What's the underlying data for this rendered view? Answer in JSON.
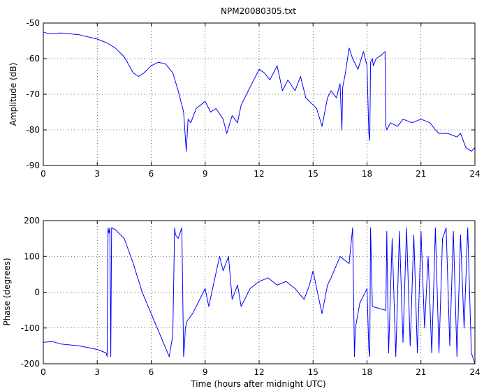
{
  "chart_data": [
    {
      "type": "line",
      "title": "NPM20080305.txt",
      "xlabel": "",
      "ylabel": "Amplitude (dB)",
      "xlim": [
        0,
        24
      ],
      "ylim": [
        -90,
        -50
      ],
      "xticks": [
        0,
        3,
        6,
        9,
        12,
        15,
        18,
        21,
        24
      ],
      "yticks": [
        -90,
        -80,
        -70,
        -60,
        -50
      ],
      "grid": true,
      "series": [
        {
          "color": "#0000ff",
          "x": [
            0,
            0.3,
            1,
            2,
            3,
            3.5,
            4,
            4.5,
            5,
            5.3,
            5.6,
            6,
            6.4,
            6.8,
            7.2,
            7.5,
            7.8,
            7.95,
            8.05,
            8.2,
            8.5,
            9,
            9.3,
            9.6,
            10,
            10.2,
            10.5,
            10.8,
            11,
            11.5,
            12,
            12.3,
            12.6,
            13,
            13.3,
            13.6,
            14,
            14.3,
            14.6,
            15,
            15.2,
            15.5,
            15.8,
            16,
            16.3,
            16.5,
            16.6,
            16.65,
            16.8,
            17,
            17.2,
            17.5,
            17.8,
            18,
            18.1,
            18.15,
            18.2,
            18.3,
            18.35,
            18.5,
            18.8,
            19,
            19.05,
            19.1,
            19.3,
            19.7,
            20,
            20.5,
            21,
            21.5,
            21.8,
            22,
            22.5,
            23,
            23.2,
            23.5,
            23.8,
            24
          ],
          "y": [
            -52.5,
            -53,
            -52.8,
            -53.3,
            -54.5,
            -55.5,
            -57,
            -59.5,
            -64,
            -65,
            -64,
            -62,
            -61,
            -61.5,
            -64,
            -69,
            -75,
            -86,
            -77,
            -78,
            -74,
            -72,
            -75,
            -74,
            -77,
            -81,
            -76,
            -78,
            -73,
            -68,
            -63,
            -64,
            -66,
            -62,
            -69,
            -66,
            -69,
            -65,
            -71,
            -73,
            -74,
            -79,
            -71,
            -69,
            -71,
            -67,
            -80,
            -68,
            -64,
            -57,
            -60,
            -63,
            -58,
            -62,
            -81,
            -83,
            -61,
            -60,
            -62,
            -60,
            -59,
            -58,
            -79,
            -80,
            -78,
            -79,
            -77,
            -78,
            -77,
            -78,
            -80,
            -81,
            -81,
            -82,
            -81,
            -85,
            -86,
            -85
          ]
        }
      ]
    },
    {
      "type": "line",
      "title": "",
      "xlabel": "Time (hours after midnight UTC)",
      "ylabel": "Phase (degrees)",
      "xlim": [
        0,
        24
      ],
      "ylim": [
        -200,
        200
      ],
      "xticks": [
        0,
        3,
        6,
        9,
        12,
        15,
        18,
        21,
        24
      ],
      "yticks": [
        -200,
        -100,
        0,
        100,
        200
      ],
      "grid": true,
      "series": [
        {
          "color": "#0000ff",
          "x": [
            0,
            0.5,
            1,
            2,
            3,
            3.5,
            3.55,
            3.6,
            3.65,
            3.7,
            3.75,
            3.8,
            4,
            4.5,
            5,
            5.5,
            6,
            6.5,
            7,
            7.2,
            7.3,
            7.35,
            7.5,
            7.7,
            7.8,
            7.85,
            7.9,
            8,
            8.3,
            8.6,
            9,
            9.2,
            9.5,
            9.8,
            10,
            10.3,
            10.5,
            10.8,
            11,
            11.5,
            12,
            12.5,
            13,
            13.5,
            14,
            14.5,
            14.8,
            15,
            15.2,
            15.5,
            15.8,
            16,
            16.5,
            17,
            17.2,
            17.3,
            17.35,
            17.6,
            18,
            18.1,
            18.15,
            18.2,
            18.3,
            19,
            19.05,
            19.1,
            19.2,
            19.4,
            19.6,
            19.8,
            20,
            20.2,
            20.4,
            20.6,
            20.8,
            21,
            21.2,
            21.4,
            21.6,
            21.8,
            22,
            22.2,
            22.4,
            22.6,
            22.8,
            23,
            23.2,
            23.4,
            23.6,
            23.8,
            24
          ],
          "y": [
            -140,
            -138,
            -145,
            -150,
            -160,
            -170,
            -180,
            180,
            165,
            180,
            -180,
            180,
            175,
            150,
            80,
            0,
            -60,
            -120,
            -180,
            -120,
            180,
            160,
            150,
            180,
            -180,
            -150,
            -100,
            -80,
            -60,
            -30,
            10,
            -40,
            30,
            100,
            60,
            100,
            -20,
            20,
            -40,
            10,
            30,
            40,
            20,
            30,
            10,
            -20,
            20,
            60,
            10,
            -60,
            20,
            40,
            100,
            80,
            180,
            -180,
            -100,
            -30,
            10,
            -160,
            -180,
            180,
            -40,
            -50,
            -50,
            170,
            -170,
            150,
            -180,
            170,
            -140,
            180,
            -150,
            160,
            -170,
            170,
            -100,
            100,
            -170,
            180,
            -170,
            150,
            180,
            -150,
            170,
            -180,
            160,
            -100,
            180,
            -170,
            -200
          ]
        }
      ]
    }
  ]
}
